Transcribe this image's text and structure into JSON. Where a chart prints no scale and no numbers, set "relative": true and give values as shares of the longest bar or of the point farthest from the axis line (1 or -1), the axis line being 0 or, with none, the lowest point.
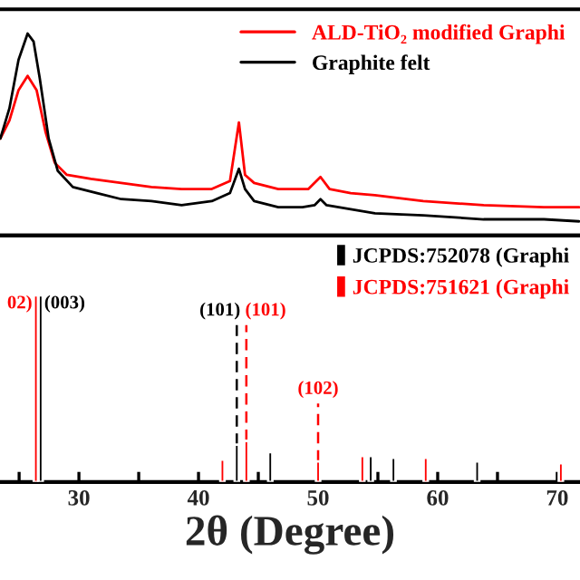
{
  "chart_data": [
    {
      "type": "line",
      "relative": true,
      "xlim": [
        23.4,
        71.9
      ],
      "legend": "top right",
      "series": [
        {
          "name": "ALD-TiO₂ modified Graphi",
          "color": "#ff0000",
          "x": [
            23.43,
            24.19,
            24.95,
            25.71,
            26.46,
            27.22,
            27.98,
            28.99,
            31.01,
            33.54,
            36.06,
            38.59,
            41.11,
            42.63,
            43.38,
            43.89,
            44.65,
            46.67,
            49.19,
            50.2,
            50.96,
            52.73,
            54.75,
            58.79,
            63.84,
            68.89,
            71.82
          ],
          "values": [
            0.48,
            0.57,
            0.72,
            0.79,
            0.72,
            0.51,
            0.36,
            0.3,
            0.28,
            0.26,
            0.24,
            0.23,
            0.23,
            0.27,
            0.56,
            0.3,
            0.26,
            0.23,
            0.23,
            0.29,
            0.23,
            0.21,
            0.2,
            0.17,
            0.15,
            0.14,
            0.14
          ]
        },
        {
          "name": "Graphite felt",
          "color": "#000000",
          "x": [
            23.43,
            24.19,
            24.95,
            25.71,
            26.21,
            26.72,
            27.47,
            28.23,
            29.49,
            31.52,
            33.54,
            36.06,
            38.59,
            41.11,
            42.63,
            43.38,
            43.89,
            44.65,
            46.67,
            48.69,
            49.7,
            50.2,
            50.71,
            52.73,
            54.75,
            58.79,
            63.84,
            68.89,
            71.82
          ],
          "values": [
            0.48,
            0.63,
            0.87,
            1.0,
            0.96,
            0.78,
            0.48,
            0.32,
            0.24,
            0.21,
            0.18,
            0.17,
            0.15,
            0.17,
            0.21,
            0.33,
            0.23,
            0.17,
            0.14,
            0.14,
            0.15,
            0.18,
            0.15,
            0.13,
            0.11,
            0.1,
            0.08,
            0.08,
            0.07
          ]
        }
      ]
    },
    {
      "type": "bar",
      "relative": true,
      "legend": "top right",
      "xlim": [
        23.4,
        71.9
      ],
      "xlabel": "2θ (Degree)",
      "xticks": [
        {
          "value": 25,
          "label": null
        },
        30,
        {
          "value": 35,
          "label": null
        },
        40,
        {
          "value": 45,
          "label": null
        },
        50,
        {
          "value": 55,
          "label": null
        },
        60,
        {
          "value": 65,
          "label": null
        },
        70
      ],
      "series": [
        {
          "name": "JCPDS:752078 (Graphi",
          "color": "#000000",
          "x": [
            43.2,
            46.0,
            54.4,
            56.3,
            63.3
          ],
          "values": [
            0.2,
            0.16,
            0.14,
            0.13,
            0.11
          ]
        },
        {
          "name": "JCPDS:751621 (Graphi",
          "color": "#ff0000",
          "x": [
            42.0,
            44.0,
            50.0,
            53.7,
            59.0,
            70.3
          ],
          "values": [
            0.12,
            0.22,
            0.11,
            0.14,
            0.13,
            0.1
          ]
        },
        {
          "name": "02)",
          "color": "#ff0000",
          "x": [
            26.4
          ],
          "values": [
            1.0
          ]
        },
        {
          "name": "(003)",
          "color": "#000000",
          "x": [
            26.8
          ],
          "values": [
            1.0
          ]
        },
        {
          "name": "(101)",
          "type": "line",
          "line_style": "dashed",
          "color": "#000000",
          "x": [
            43.2,
            43.2
          ],
          "values": [
            0.2,
            0.84
          ]
        },
        {
          "name": "(101)",
          "type": "line",
          "line_style": "dashed",
          "color": "#ff0000",
          "x": [
            44.0,
            44.0
          ],
          "values": [
            0.22,
            0.84
          ]
        },
        {
          "name": "(102)",
          "type": "line",
          "line_style": "dashed",
          "color": "#ff0000",
          "x": [
            50.0,
            50.0
          ],
          "values": [
            0.11,
            0.42
          ]
        }
      ]
    }
  ]
}
